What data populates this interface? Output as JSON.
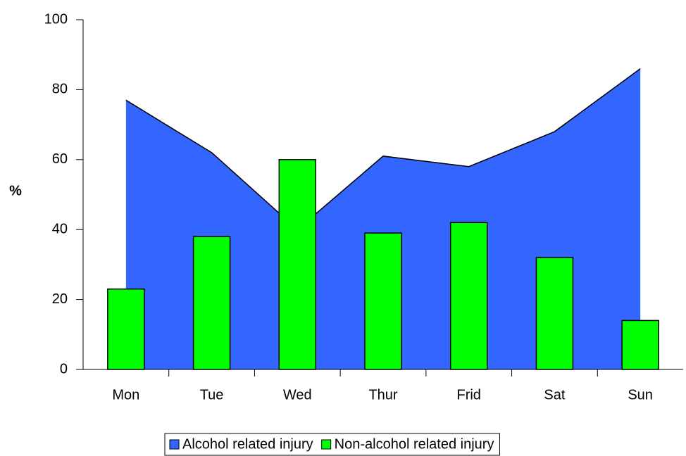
{
  "chart_data": {
    "type": "area_bar",
    "ylabel": "%",
    "categories": [
      "Mon",
      "Tue",
      "Wed",
      "Thur",
      "Frid",
      "Sat",
      "Sun"
    ],
    "series": [
      {
        "name": "Alcohol related injury",
        "color": "#3366ff",
        "type": "area",
        "values": [
          77,
          62,
          40,
          61,
          58,
          68,
          86
        ]
      },
      {
        "name": "Non-alcohol related injury",
        "color": "#00ff00",
        "type": "bar",
        "values": [
          23,
          38,
          60,
          39,
          42,
          32,
          14
        ]
      }
    ],
    "ylim": [
      0,
      100
    ],
    "yticks": [
      0,
      20,
      40,
      60,
      80,
      100
    ],
    "grid": false,
    "legend": "bottom"
  }
}
